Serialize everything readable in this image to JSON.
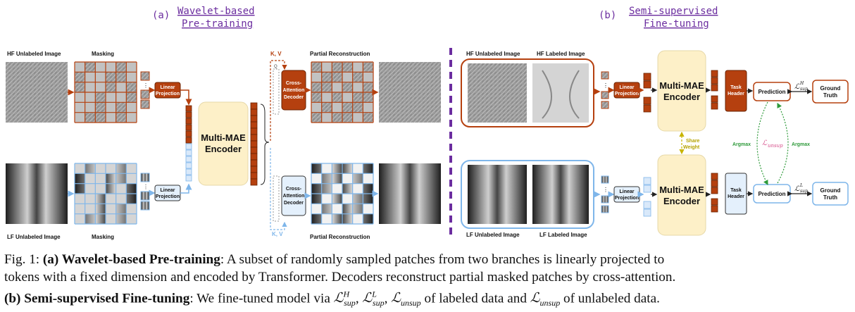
{
  "sections": {
    "a_letter": "(a)",
    "a_title_line1": "Wavelet-based",
    "a_title_line2": "Pre-training",
    "b_letter": "(b)",
    "b_title_line1": "Semi-supervised",
    "b_title_line2": "Fine-tuning"
  },
  "pretrain": {
    "hf_unlabeled": "HF Unlabeled Image",
    "lf_unlabeled": "LF Unlabeled Image",
    "masking_top": "Masking",
    "masking_bottom": "Masking",
    "linear_projection_1": "Linear",
    "linear_projection_2": "Projection",
    "encoder_line1": "Multi-MAE",
    "encoder_line2": "Encoder",
    "kv_top": "K, V",
    "kv_bottom": "K, V",
    "q_label": "Q",
    "decoder_line1": "Cross-",
    "decoder_line2": "Attention",
    "decoder_line3": "Decoder",
    "partial_recon_top": "Partial Reconstruction",
    "partial_recon_bottom": "Partial Reconstruction"
  },
  "finetune": {
    "hf_unlabeled": "HF Unlabeled Image",
    "hf_labeled": "HF Labeled Image",
    "lf_unlabeled": "LF Unlabeled Image",
    "lf_labeled": "LF Labeled Image",
    "linear_projection_1": "Linear",
    "linear_projection_2": "Projection",
    "encoder_line1": "Multi-MAE",
    "encoder_line2": "Encoder",
    "share_weight_1": "Share",
    "share_weight_2": "Weight",
    "task_header_1": "Task",
    "task_header_2": "Header",
    "prediction": "Prediction",
    "ground_truth_1": "Ground",
    "ground_truth_2": "Truth",
    "argmax": "Argmax",
    "l_sup_h": "ℒ",
    "l_sup_h_sup": "H",
    "l_sup_h_sub": "sup",
    "l_sup_l_sup": "L",
    "l_unsup_sub": "unsup"
  },
  "caption": {
    "fig": "Fig. 1: ",
    "a_bold": "(a) Wavelet-based Pre-training",
    "a_text_1": ": A subset of randomly sampled patches from two branches is linearly projected to",
    "a_text_2": "tokens with a fixed dimension and encoded by Transformer. Decoders reconstruct partial masked patches by cross-attention.",
    "b_bold": "(b) Semi-supervised Fine-tuning",
    "b_text_1": ": We fine-tuned model via ",
    "b_text_2": " of labeled data and ",
    "b_text_3": " of unlabeled data."
  },
  "colors": {
    "hf": "#b5400f",
    "lf": "#7fb6ea",
    "encoder": "#fdf0c8",
    "purple": "#6b2d9f",
    "share": "#c8b400",
    "argmax": "#2e9a3a",
    "unsup": "#d64d8a"
  }
}
